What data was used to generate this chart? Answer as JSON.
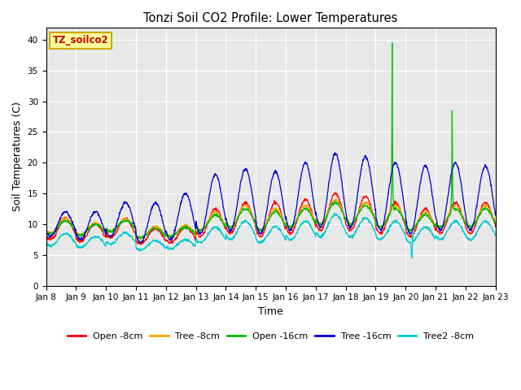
{
  "title": "Tonzi Soil CO2 Profile: Lower Temperatures",
  "xlabel": "Time",
  "ylabel": "Soil Temperatures (C)",
  "ylim": [
    0,
    42
  ],
  "yticks": [
    0,
    5,
    10,
    15,
    20,
    25,
    30,
    35,
    40
  ],
  "series_colors": {
    "open8": "#ff0000",
    "tree8": "#ffa500",
    "open16": "#00bb00",
    "tree16": "#0000cc",
    "tree2_8": "#00cccc"
  },
  "series_labels": [
    "Open -8cm",
    "Tree -8cm",
    "Open -16cm",
    "Tree -16cm",
    "Tree2 -8cm"
  ],
  "annotation_text": "TZ_soilco2",
  "annotation_color": "#cc0000",
  "annotation_bg": "#ffff99",
  "annotation_border": "#ccaa00",
  "bg_color": "#e8e8e8",
  "n_days": 15,
  "points_per_day": 96,
  "start_day": 8
}
